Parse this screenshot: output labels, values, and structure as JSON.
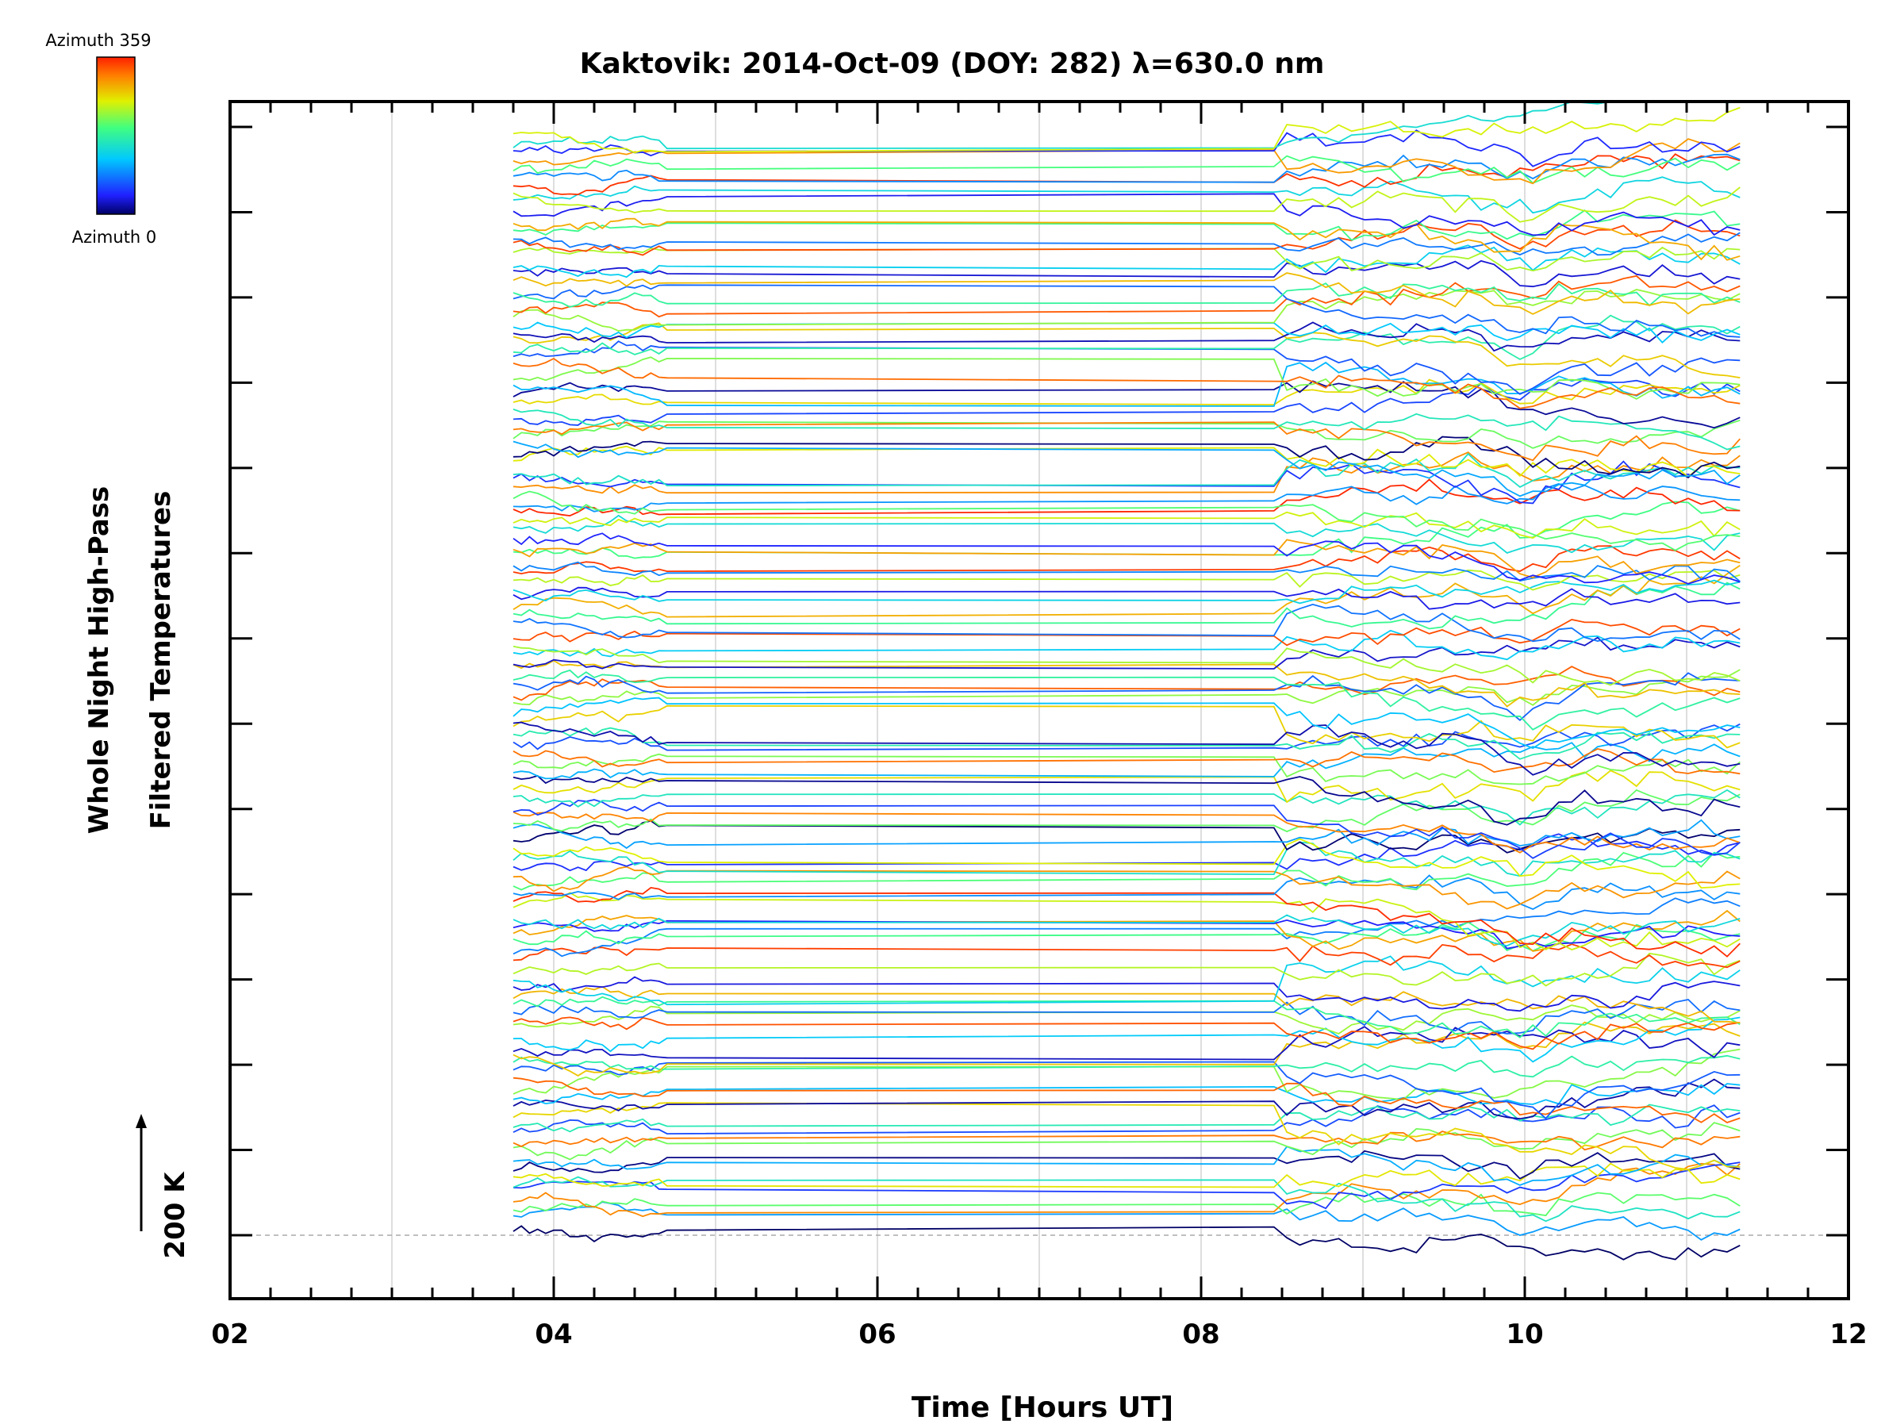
{
  "chart_data": {
    "type": "line",
    "title": "Kaktovik: 2014-Oct-09 (DOY: 282) λ=630.0 nm",
    "xlabel": "Time [Hours UT]",
    "ylabel_line1": "Whole Night High-Pass",
    "ylabel_line2": "Filtered Temperatures",
    "xlim": [
      2,
      12
    ],
    "x_ticks": [
      "02",
      "04",
      "06",
      "08",
      "10",
      "12"
    ],
    "x_tick_values": [
      2,
      4,
      6,
      8,
      10,
      12
    ],
    "x_grid_values": [
      3,
      4,
      5,
      6,
      7,
      8,
      9,
      10,
      11
    ],
    "scale_label": "200 K",
    "colorbar": {
      "top_label": "Azimuth  359",
      "bottom_label": "Azimuth  0",
      "min": 0,
      "max": 359
    },
    "n_traces": 128,
    "time_start": 3.75,
    "time_end": 11.35,
    "data_gap": [
      4.7,
      8.45
    ],
    "stack_offset_units": 1,
    "y_baseline_units": 0,
    "y_top_units": 130
  }
}
